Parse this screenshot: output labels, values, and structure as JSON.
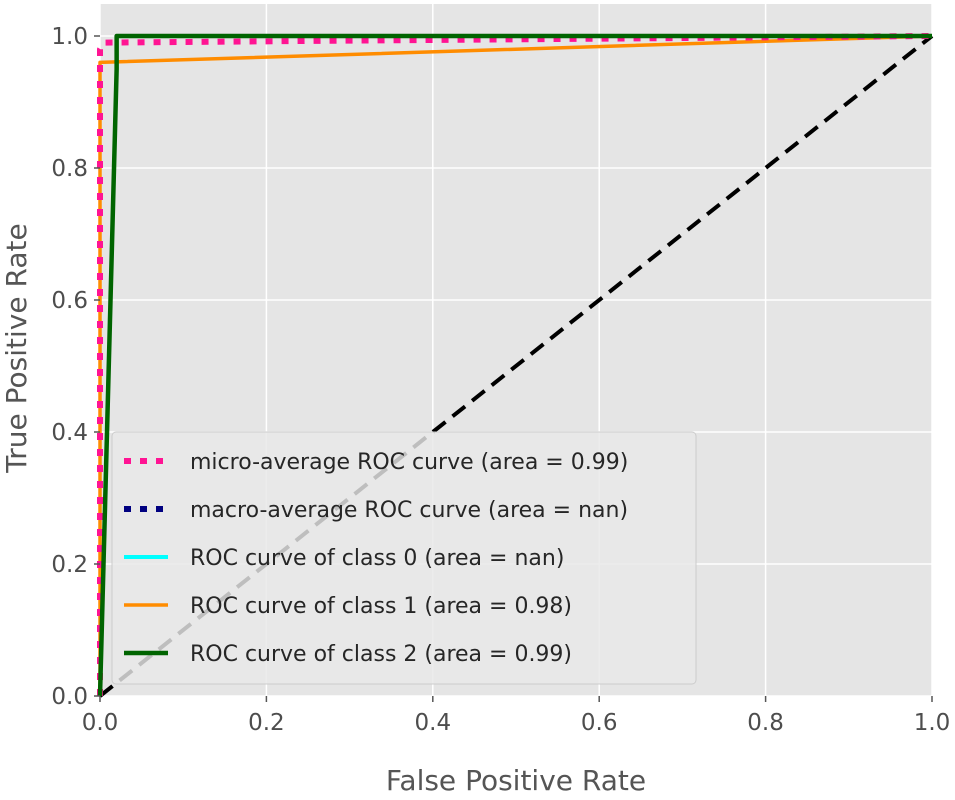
{
  "chart_data": {
    "type": "line",
    "title": "",
    "xlabel": "False Positive Rate",
    "ylabel": "True Positive Rate",
    "xlim": [
      0.0,
      1.0
    ],
    "ylim": [
      0.0,
      1.0
    ],
    "xticks": [
      "0.0",
      "0.2",
      "0.4",
      "0.6",
      "0.8",
      "1.0"
    ],
    "yticks": [
      "0.0",
      "0.2",
      "0.4",
      "0.6",
      "0.8",
      "1.0"
    ],
    "grid": true,
    "background": "#e5e5e5",
    "legend_position": "lower-left",
    "series": [
      {
        "key": "micro",
        "name": "micro-average ROC curve (area = 0.99)",
        "color": "#ff1493",
        "style": "dotted",
        "x": [
          0.0,
          0.0,
          0.005,
          1.0
        ],
        "y": [
          0.0,
          0.98,
          0.99,
          1.0
        ]
      },
      {
        "key": "macro",
        "name": "macro-average ROC curve (area = nan)",
        "color": "#000080",
        "style": "dotted",
        "x": [],
        "y": []
      },
      {
        "key": "class0",
        "name": "ROC curve of class 0 (area = nan)",
        "color": "#00ffff",
        "style": "solid",
        "x": [],
        "y": []
      },
      {
        "key": "class1",
        "name": "ROC curve of class 1 (area = 0.98)",
        "color": "#ff8c00",
        "style": "solid",
        "x": [
          0.0,
          0.0,
          1.0
        ],
        "y": [
          0.0,
          0.96,
          1.0
        ]
      },
      {
        "key": "class2",
        "name": "ROC curve of class 2 (area = 0.99)",
        "color": "#006400",
        "style": "solid",
        "x": [
          0.0,
          0.02,
          0.02,
          1.0
        ],
        "y": [
          0.0,
          0.95,
          1.0,
          1.0
        ]
      }
    ],
    "reference_line": {
      "name": "chance-diagonal",
      "color": "#000000",
      "style": "dashed",
      "x": [
        0.0,
        1.0
      ],
      "y": [
        0.0,
        1.0
      ]
    }
  }
}
